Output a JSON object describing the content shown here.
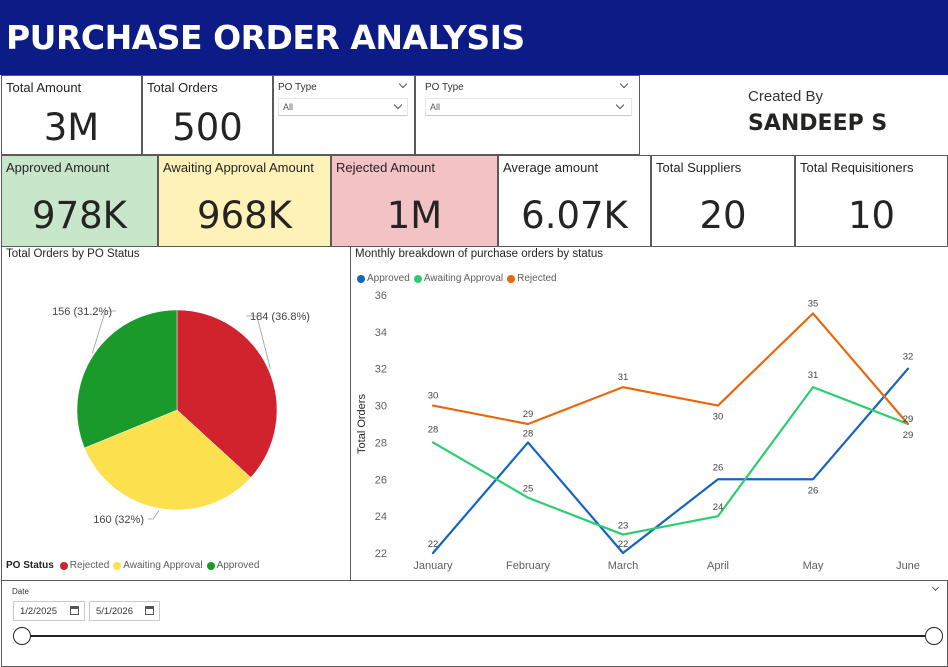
{
  "header": {
    "title": "PURCHASE ORDER ANALYSIS"
  },
  "kpi_top": [
    {
      "label": "Total Amount",
      "value": "3M"
    },
    {
      "label": "Total Orders",
      "value": "500"
    }
  ],
  "slicers": [
    {
      "label": "PO Type",
      "value": "All"
    },
    {
      "label": "PO Type",
      "value": "All"
    }
  ],
  "creator": {
    "label": "Created By",
    "name": "SANDEEP S"
  },
  "kpi_row": [
    {
      "label": "Approved Amount",
      "value": "978K",
      "bg": "#c8e6c9"
    },
    {
      "label": "Awaiting Approval Amount",
      "value": "968K",
      "bg": "#fff2b8"
    },
    {
      "label": "Rejected Amount",
      "value": "1M",
      "bg": "#f2c2c4"
    },
    {
      "label": "Average amount",
      "value": "6.07K",
      "bg": "#ffffff"
    },
    {
      "label": "Total Suppliers",
      "value": "20",
      "bg": "#ffffff"
    },
    {
      "label": "Total Requisitioners",
      "value": "10",
      "bg": "#ffffff"
    }
  ],
  "colors": {
    "header": "#0c1b85",
    "rejected": "#d0232e",
    "awaiting": "#fce04e",
    "approved": "#1a9a2b",
    "line_approved": "#1565c0",
    "line_awaiting": "#2ecc71",
    "line_rejected": "#e8680c"
  },
  "chart_data": [
    {
      "type": "pie",
      "title": "Total Orders by PO Status",
      "legend_title": "PO Status",
      "legend_position": "bottom-left",
      "slices": [
        {
          "name": "Rejected",
          "value": 184,
          "label": "184 (36.8%)",
          "color": "#d0232e"
        },
        {
          "name": "Awaiting Approval",
          "value": 160,
          "label": "160 (32%)",
          "color": "#fce04e"
        },
        {
          "name": "Approved",
          "value": 156,
          "label": "156 (31.2%)",
          "color": "#1a9a2b"
        }
      ]
    },
    {
      "type": "line",
      "title": "Monthly breakdown of purchase orders by status",
      "legend_position": "top-left",
      "ylabel": "Total Orders",
      "xlabel": "",
      "ylim": [
        22,
        36
      ],
      "yticks": [
        22,
        24,
        26,
        28,
        30,
        32,
        34,
        36
      ],
      "grid": false,
      "categories": [
        "January",
        "February",
        "March",
        "April",
        "May",
        "June"
      ],
      "series": [
        {
          "name": "Approved",
          "color": "#1565c0",
          "values": [
            22,
            28,
            22,
            26,
            26,
            32
          ]
        },
        {
          "name": "Awaiting Approval",
          "color": "#2ecc71",
          "values": [
            28,
            25,
            23,
            24,
            31,
            29
          ]
        },
        {
          "name": "Rejected",
          "color": "#e8680c",
          "values": [
            30,
            29,
            31,
            30,
            35,
            29
          ]
        }
      ]
    }
  ],
  "date_slicer": {
    "label": "Date",
    "start": "1/2/2025",
    "end": "5/1/2026"
  }
}
